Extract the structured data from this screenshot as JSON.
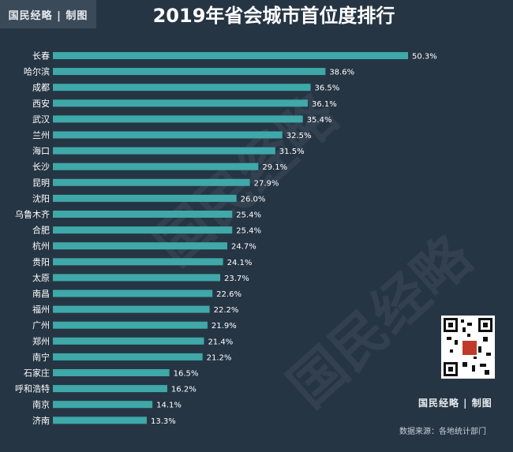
{
  "brand": "国民经略 | 制图",
  "title": "2019年省会城市首位度排行",
  "watermark_text": "国民经略",
  "footer_brand": "国民经略 | 制图",
  "source_note": "数据来源：各地统计部门",
  "colors": {
    "background": "#263544",
    "bar": "#3fa8a8",
    "text": "#ffffff"
  },
  "chart_data": {
    "type": "bar",
    "orientation": "horizontal",
    "title": "2019年省会城市首位度排行",
    "categories": [
      "长春",
      "哈尔滨",
      "成都",
      "西安",
      "武汉",
      "兰州",
      "海口",
      "长沙",
      "昆明",
      "沈阳",
      "乌鲁木齐",
      "合肥",
      "杭州",
      "贵阳",
      "太原",
      "南昌",
      "福州",
      "广州",
      "郑州",
      "南宁",
      "石家庄",
      "呼和浩特",
      "南京",
      "济南"
    ],
    "values": [
      50.3,
      38.6,
      36.5,
      36.1,
      35.4,
      32.5,
      31.5,
      29.1,
      27.9,
      26.0,
      25.4,
      25.4,
      24.7,
      24.1,
      23.7,
      22.6,
      22.2,
      21.9,
      21.4,
      21.2,
      16.5,
      16.2,
      14.1,
      13.3
    ],
    "value_labels": [
      "50.3%",
      "38.6%",
      "36.5%",
      "36.1%",
      "35.4%",
      "32.5%",
      "31.5%",
      "29.1%",
      "27.9%",
      "26.0%",
      "25.4%",
      "25.4%",
      "24.7%",
      "24.1%",
      "23.7%",
      "22.6%",
      "22.2%",
      "21.9%",
      "21.4%",
      "21.2%",
      "16.5%",
      "16.2%",
      "14.1%",
      "13.3%"
    ],
    "unit": "%",
    "xlabel": "",
    "ylabel": "",
    "grid": false
  }
}
